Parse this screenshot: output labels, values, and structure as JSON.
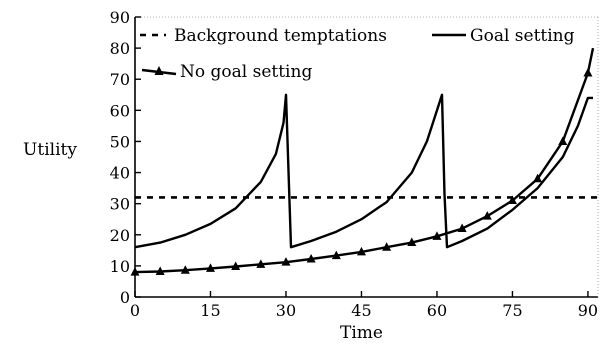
{
  "chart_data": {
    "type": "line",
    "xlabel": "Time",
    "ylabel": "Utility",
    "xlim": [
      0,
      92
    ],
    "ylim": [
      0,
      90
    ],
    "xticks": [
      0,
      15,
      30,
      45,
      60,
      75,
      90
    ],
    "yticks": [
      0,
      10,
      20,
      30,
      40,
      50,
      60,
      70,
      80,
      90
    ],
    "grid": false,
    "legend_placement": "top",
    "series": [
      {
        "name": "Background temptations",
        "style": "dashed",
        "x": [
          0,
          92
        ],
        "y": [
          32,
          32
        ]
      },
      {
        "name": "Goal setting",
        "style": "solid",
        "x": [
          0,
          5,
          10,
          15,
          20,
          25,
          28,
          29.5,
          30,
          31,
          35,
          40,
          45,
          50,
          55,
          58,
          60,
          61,
          61.5,
          62,
          65,
          70,
          75,
          80,
          85,
          88,
          90,
          91
        ],
        "y": [
          16,
          17.5,
          20,
          23.5,
          28.5,
          37,
          46,
          56,
          65,
          16,
          18,
          21,
          25,
          30.5,
          40,
          50,
          60,
          65,
          33,
          16,
          18,
          22,
          28,
          35,
          45,
          55,
          64,
          64
        ]
      },
      {
        "name": "No goal setting",
        "style": "solid-triangle-markers",
        "x": [
          0,
          5,
          10,
          15,
          20,
          25,
          30,
          35,
          40,
          45,
          50,
          55,
          60,
          65,
          70,
          75,
          80,
          85,
          90,
          91
        ],
        "y": [
          8,
          8.2,
          8.6,
          9.2,
          9.8,
          10.5,
          11.2,
          12.2,
          13.3,
          14.5,
          16,
          17.5,
          19.5,
          22,
          26,
          31,
          38,
          50,
          72,
          80
        ]
      }
    ]
  }
}
